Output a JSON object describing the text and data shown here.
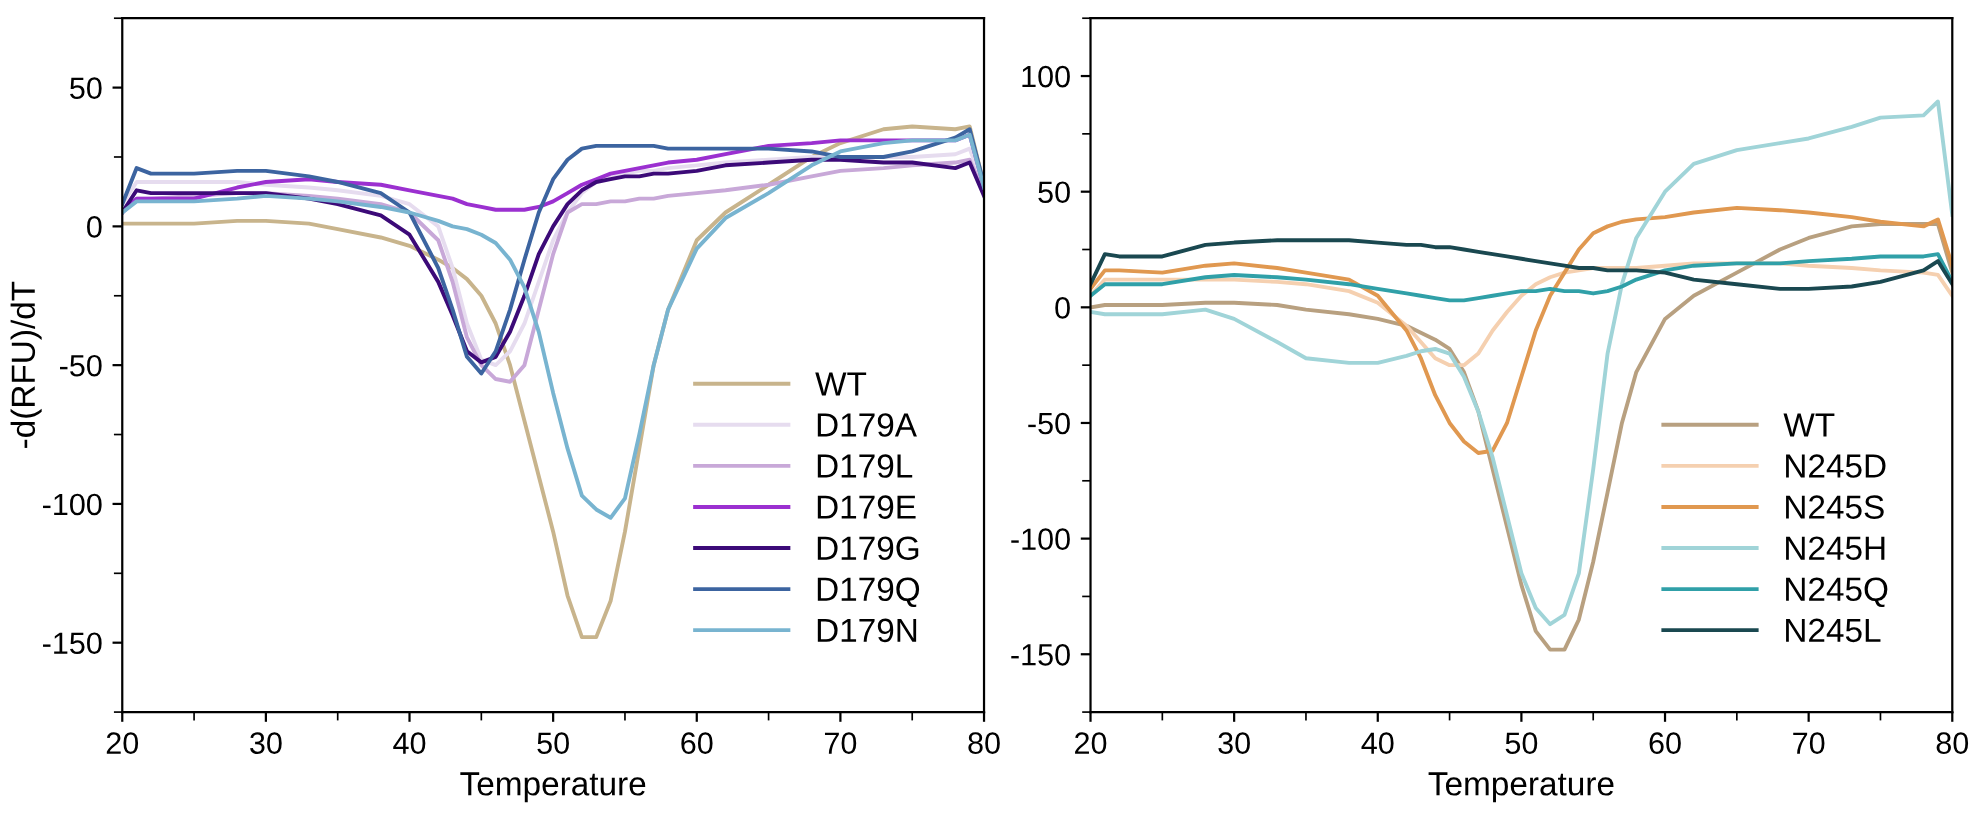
{
  "chart_data": [
    {
      "type": "line",
      "xlabel": "Temperature",
      "ylabel": "-d(RFU)/dT",
      "xlim": [
        20,
        80
      ],
      "ylim": [
        -175,
        75
      ],
      "xticks": [
        20,
        30,
        40,
        50,
        60,
        70,
        80
      ],
      "yticks": [
        {
          "value": -150,
          "label": "-150"
        },
        {
          "value": -100,
          "label": "-100"
        },
        {
          "value": -50,
          "label": "-50"
        },
        0,
        50
      ],
      "legend": "bottom right",
      "x": [
        20,
        21,
        22,
        25,
        28,
        30,
        33,
        35,
        38,
        40,
        42,
        43,
        44,
        45,
        46,
        47,
        48,
        49,
        50,
        51,
        52,
        53,
        54,
        55,
        56,
        57,
        58,
        60,
        62,
        65,
        68,
        70,
        73,
        75,
        78,
        79,
        80
      ],
      "series": [
        {
          "name": "WT",
          "color": "#c8b48c",
          "values": [
            1,
            1,
            1,
            1,
            2,
            2,
            1,
            -1,
            -4,
            -7,
            -12,
            -15,
            -19,
            -25,
            -35,
            -50,
            -70,
            -90,
            -110,
            -133,
            -148,
            -148,
            -135,
            -110,
            -80,
            -50,
            -30,
            -5,
            5,
            15,
            25,
            30,
            35,
            36,
            35,
            36,
            15
          ]
        },
        {
          "name": "D179A",
          "color": "#e6dcef",
          "values": [
            8,
            16,
            16,
            16,
            16,
            15,
            14,
            13,
            11,
            8,
            0,
            -15,
            -35,
            -48,
            -50,
            -45,
            -35,
            -20,
            -5,
            5,
            12,
            16,
            18,
            19,
            20,
            20,
            21,
            22,
            23,
            24,
            25,
            25,
            25,
            25,
            26,
            28,
            14
          ]
        },
        {
          "name": "D179L",
          "color": "#c8a8d8",
          "values": [
            5,
            10,
            10,
            11,
            12,
            12,
            11,
            10,
            8,
            5,
            -5,
            -20,
            -40,
            -50,
            -55,
            -56,
            -50,
            -30,
            -10,
            5,
            8,
            8,
            9,
            9,
            10,
            10,
            11,
            12,
            13,
            15,
            18,
            20,
            21,
            22,
            23,
            24,
            12
          ]
        },
        {
          "name": "D179E",
          "color": "#9b30d0",
          "values": [
            5,
            10,
            10,
            10,
            14,
            16,
            17,
            16,
            15,
            13,
            11,
            10,
            8,
            7,
            6,
            6,
            6,
            7,
            9,
            12,
            15,
            17,
            19,
            20,
            21,
            22,
            23,
            24,
            26,
            29,
            30,
            31,
            31,
            31,
            31,
            33,
            14
          ]
        },
        {
          "name": "D179G",
          "color": "#3c0a78",
          "values": [
            5,
            13,
            12,
            12,
            12,
            12,
            10,
            8,
            4,
            -3,
            -20,
            -32,
            -45,
            -49,
            -47,
            -38,
            -25,
            -10,
            0,
            8,
            13,
            16,
            17,
            18,
            18,
            19,
            19,
            20,
            22,
            23,
            24,
            24,
            23,
            23,
            21,
            23,
            11
          ]
        },
        {
          "name": "D179Q",
          "color": "#3c64a0",
          "values": [
            8,
            21,
            19,
            19,
            20,
            20,
            18,
            16,
            12,
            5,
            -15,
            -30,
            -47,
            -53,
            -45,
            -30,
            -12,
            5,
            17,
            24,
            28,
            29,
            29,
            29,
            29,
            29,
            28,
            28,
            28,
            28,
            27,
            25,
            25,
            27,
            32,
            35,
            15
          ]
        },
        {
          "name": "D179N",
          "color": "#78b4d0",
          "values": [
            5,
            9,
            9,
            9,
            10,
            11,
            10,
            9,
            7,
            5,
            2,
            0,
            -1,
            -3,
            -6,
            -12,
            -22,
            -38,
            -60,
            -80,
            -97,
            -102,
            -105,
            -98,
            -75,
            -50,
            -30,
            -8,
            3,
            12,
            22,
            27,
            30,
            31,
            31,
            33,
            14
          ]
        }
      ]
    },
    {
      "type": "line",
      "xlabel": "Temperature",
      "xlim": [
        20,
        80
      ],
      "ylim": [
        -175,
        125
      ],
      "xticks": [
        20,
        30,
        40,
        50,
        60,
        70,
        80
      ],
      "yticks": [
        {
          "value": -150,
          "label": "-150"
        },
        {
          "value": -100,
          "label": "-100"
        },
        {
          "value": -50,
          "label": "-50"
        },
        0,
        50,
        100
      ],
      "legend": "bottom right",
      "x": [
        20,
        21,
        22,
        25,
        28,
        30,
        33,
        35,
        38,
        40,
        42,
        43,
        44,
        45,
        46,
        47,
        48,
        49,
        50,
        51,
        52,
        53,
        54,
        55,
        56,
        57,
        58,
        60,
        62,
        65,
        68,
        70,
        73,
        75,
        78,
        79,
        80
      ],
      "series": [
        {
          "name": "WT",
          "color": "#b8a080",
          "values": [
            0,
            1,
            1,
            1,
            2,
            2,
            1,
            -1,
            -3,
            -5,
            -8,
            -11,
            -14,
            -18,
            -28,
            -45,
            -70,
            -95,
            -120,
            -140,
            -148,
            -148,
            -135,
            -110,
            -80,
            -50,
            -28,
            -5,
            5,
            15,
            25,
            30,
            35,
            36,
            36,
            36,
            15
          ]
        },
        {
          "name": "N245D",
          "color": "#f5d0b0",
          "values": [
            5,
            12,
            12,
            12,
            12,
            12,
            11,
            10,
            7,
            2,
            -8,
            -15,
            -22,
            -25,
            -25,
            -20,
            -10,
            -2,
            5,
            10,
            13,
            15,
            16,
            17,
            17,
            17,
            17,
            18,
            19,
            19,
            19,
            18,
            17,
            16,
            15,
            14,
            5
          ]
        },
        {
          "name": "N245S",
          "color": "#e09850",
          "values": [
            8,
            16,
            16,
            15,
            18,
            19,
            17,
            15,
            12,
            5,
            -10,
            -22,
            -38,
            -50,
            -58,
            -63,
            -62,
            -50,
            -30,
            -10,
            5,
            15,
            25,
            32,
            35,
            37,
            38,
            39,
            41,
            43,
            42,
            41,
            39,
            37,
            35,
            38,
            18
          ]
        },
        {
          "name": "N245H",
          "color": "#a0d4d8",
          "values": [
            -2,
            -3,
            -3,
            -3,
            -1,
            -5,
            -15,
            -22,
            -24,
            -24,
            -21,
            -19,
            -18,
            -20,
            -30,
            -45,
            -65,
            -90,
            -115,
            -130,
            -137,
            -133,
            -115,
            -70,
            -20,
            10,
            30,
            50,
            62,
            68,
            71,
            73,
            78,
            82,
            83,
            89,
            40
          ]
        },
        {
          "name": "N245Q",
          "color": "#30a0a8",
          "values": [
            5,
            10,
            10,
            10,
            13,
            14,
            13,
            12,
            10,
            8,
            6,
            5,
            4,
            3,
            3,
            4,
            5,
            6,
            7,
            7,
            8,
            7,
            7,
            6,
            7,
            9,
            12,
            16,
            18,
            19,
            19,
            20,
            21,
            22,
            22,
            23,
            11
          ]
        },
        {
          "name": "N245L",
          "color": "#1a4850",
          "values": [
            10,
            23,
            22,
            22,
            27,
            28,
            29,
            29,
            29,
            28,
            27,
            27,
            26,
            26,
            25,
            24,
            23,
            22,
            21,
            20,
            19,
            18,
            17,
            17,
            16,
            16,
            16,
            15,
            12,
            10,
            8,
            8,
            9,
            11,
            16,
            20,
            10
          ]
        }
      ]
    }
  ]
}
